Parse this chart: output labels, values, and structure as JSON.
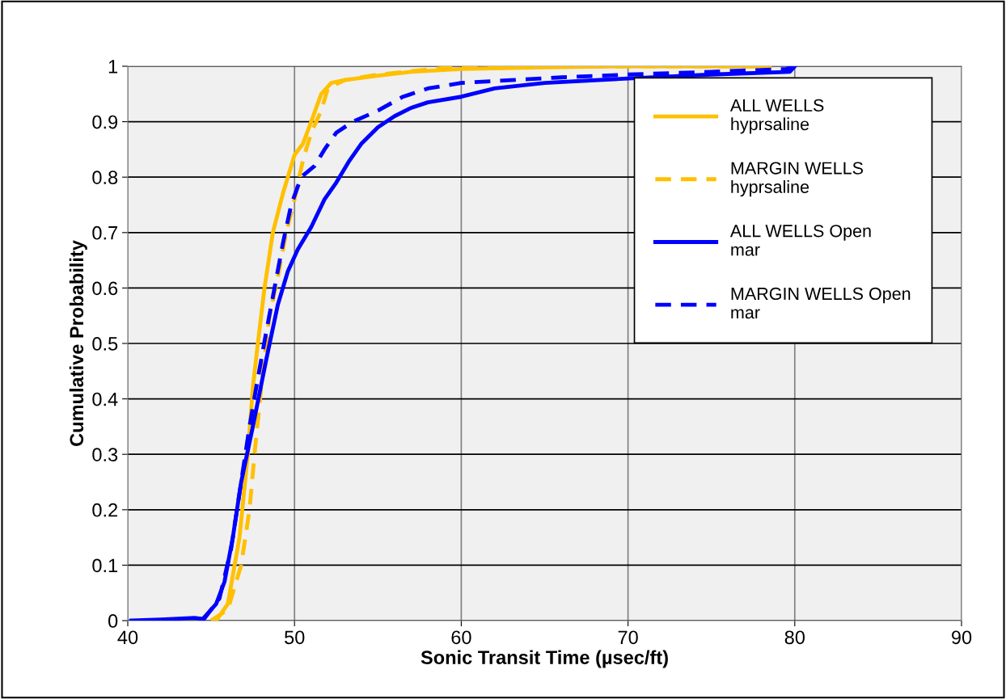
{
  "chart_data": {
    "type": "line",
    "xlabel": "Sonic Transit Time (µsec/ft)",
    "ylabel": "Cumulative Probability",
    "xlim": [
      40,
      90
    ],
    "xticks": [
      40,
      50,
      60,
      70,
      80,
      90
    ],
    "ylim": [
      0,
      1
    ],
    "yticks": [
      0,
      0.1,
      0.2,
      0.3,
      0.4,
      0.5,
      0.6,
      0.7,
      0.8,
      0.9,
      1
    ],
    "grid": true,
    "legend": "right",
    "marker": "none",
    "series": [
      {
        "name": "ALL WELLS hyprsaline",
        "color": "#ffc000",
        "line_style": "solid",
        "x": [
          45.3,
          46,
          46.7,
          47.2,
          47.5,
          47.8,
          48.2,
          48.7,
          49.3,
          50,
          50.5,
          51,
          51.6,
          52.2,
          53,
          55,
          57,
          60,
          65,
          70,
          78.5
        ],
        "values": [
          0,
          0.03,
          0.15,
          0.3,
          0.42,
          0.5,
          0.6,
          0.7,
          0.77,
          0.84,
          0.86,
          0.9,
          0.95,
          0.97,
          0.975,
          0.983,
          0.99,
          0.995,
          0.998,
          1,
          1
        ]
      },
      {
        "name": "MARGIN WELLS hyprsaline",
        "color": "#ffc000",
        "line_style": "dashed",
        "x": [
          45,
          46,
          46.8,
          47.3,
          47.6,
          48,
          48.5,
          49,
          49.5,
          50,
          50.5,
          51,
          51.6,
          52,
          53,
          55,
          59,
          62,
          70,
          78.5
        ],
        "values": [
          0,
          0.02,
          0.1,
          0.2,
          0.3,
          0.42,
          0.55,
          0.62,
          0.7,
          0.76,
          0.83,
          0.88,
          0.92,
          0.96,
          0.975,
          0.985,
          0.997,
          1,
          1,
          1
        ]
      },
      {
        "name": "ALL WELLS Open mar",
        "color": "#0000ff",
        "line_style": "solid",
        "x": [
          40.2,
          42,
          44,
          44.5,
          45.3,
          45.8,
          46.3,
          46.8,
          47.5,
          48.3,
          49,
          49.6,
          50.2,
          51,
          51.8,
          52.5,
          53.3,
          54,
          55,
          56,
          57,
          58,
          60,
          62,
          65,
          70,
          75,
          79.7,
          80
        ],
        "values": [
          0,
          0.002,
          0.005,
          0.003,
          0.03,
          0.07,
          0.15,
          0.25,
          0.35,
          0.47,
          0.57,
          0.63,
          0.67,
          0.71,
          0.76,
          0.79,
          0.83,
          0.86,
          0.89,
          0.91,
          0.925,
          0.935,
          0.945,
          0.96,
          0.97,
          0.978,
          0.985,
          0.99,
          1
        ]
      },
      {
        "name": "MARGIN WELLS Open mar",
        "color": "#0000ff",
        "line_style": "dashed",
        "x": [
          44.5,
          45.5,
          46.2,
          46.8,
          47.3,
          47.7,
          48.3,
          48.8,
          49.3,
          49.8,
          50.4,
          51.2,
          51.8,
          52.5,
          53.5,
          55,
          56.5,
          58,
          60,
          63,
          66,
          70,
          75,
          79.5,
          80
        ],
        "values": [
          0,
          0.04,
          0.13,
          0.25,
          0.35,
          0.42,
          0.52,
          0.6,
          0.68,
          0.75,
          0.8,
          0.82,
          0.85,
          0.88,
          0.9,
          0.92,
          0.945,
          0.96,
          0.97,
          0.975,
          0.98,
          0.985,
          0.99,
          0.995,
          1
        ]
      }
    ]
  }
}
